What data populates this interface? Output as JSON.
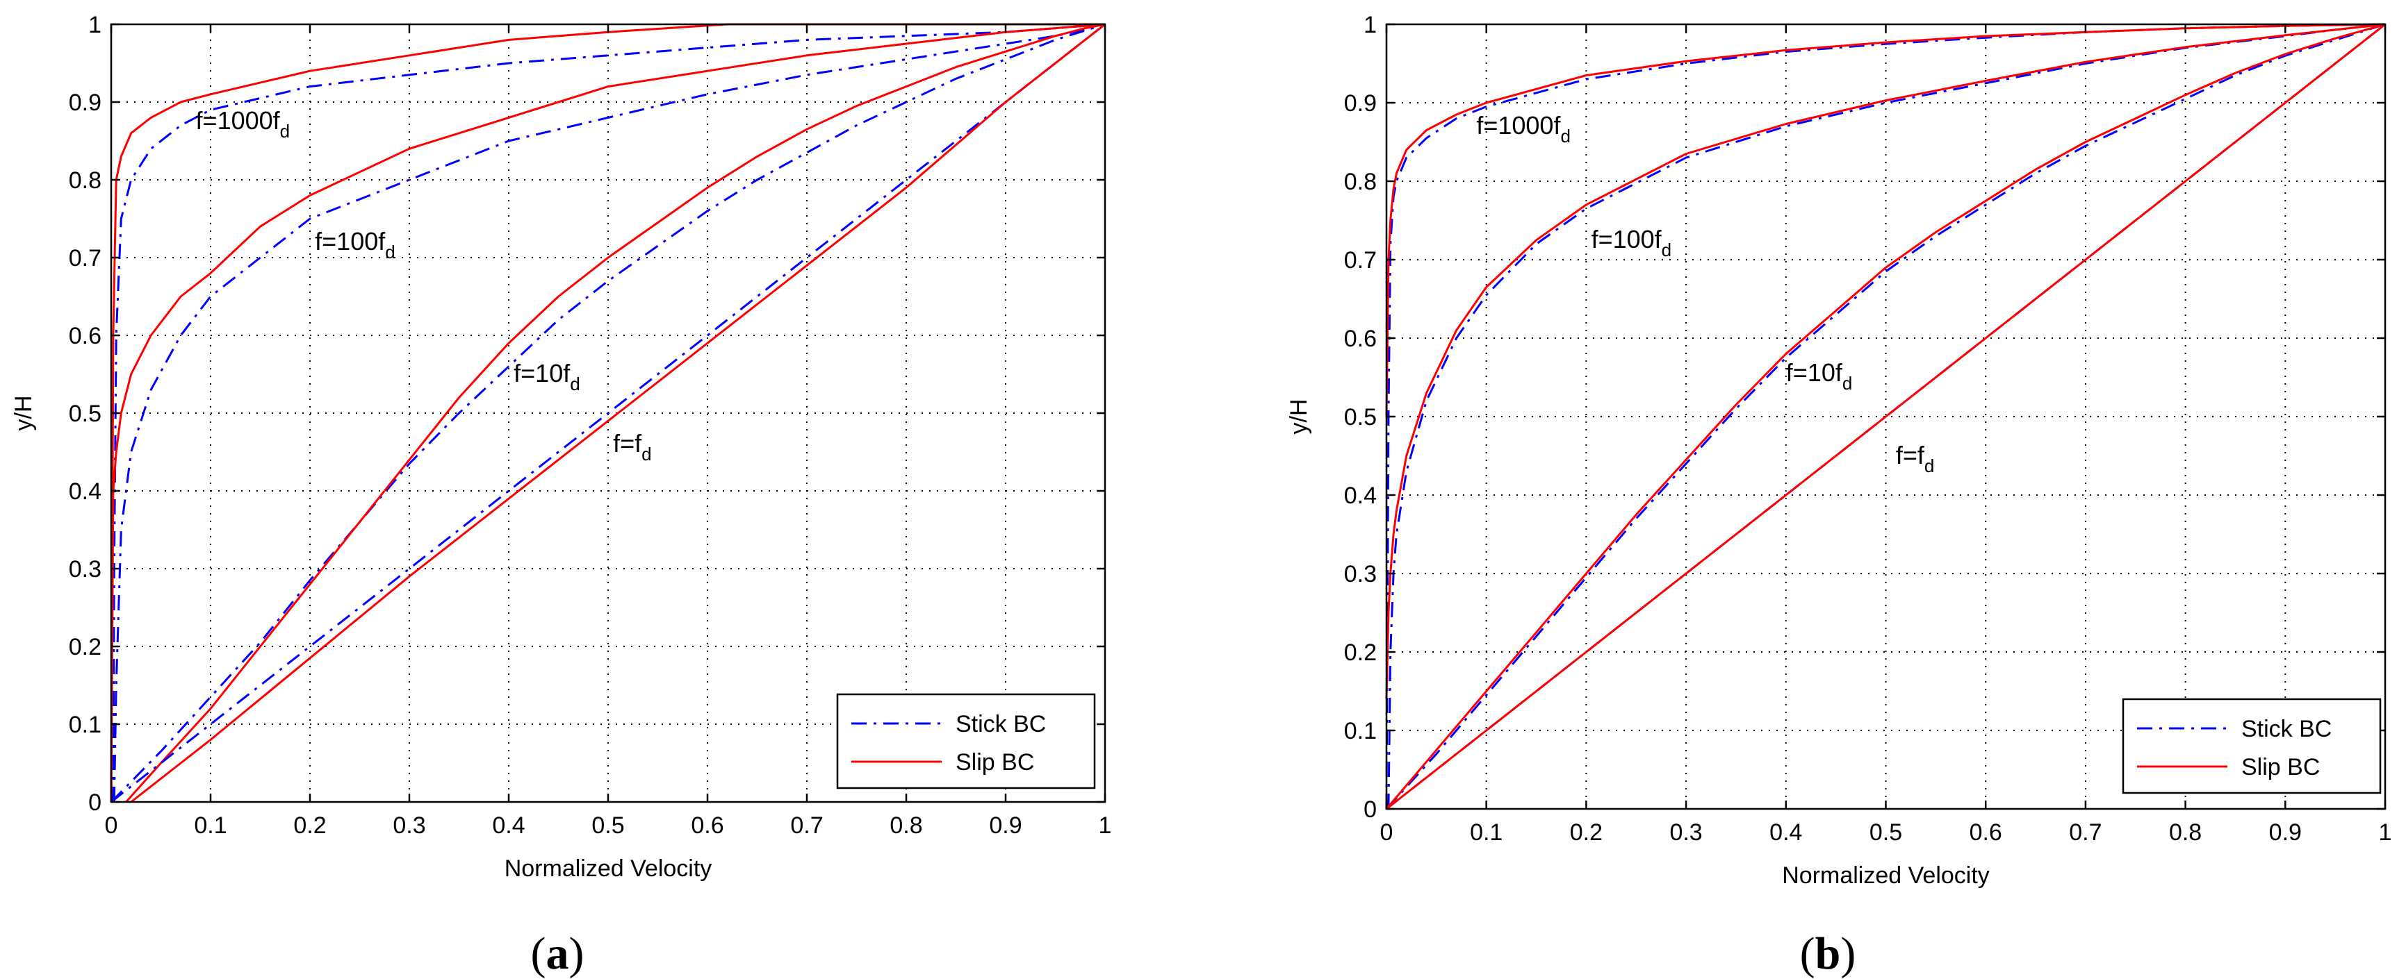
{
  "colors": {
    "stick": "#0000ff",
    "slip": "#ff0000",
    "axis": "#000000",
    "background": "#ffffff"
  },
  "chart_data": [
    {
      "id": "a",
      "type": "line",
      "caption_label": "a",
      "caption_open": "(",
      "caption_close": ")",
      "xlabel": "Normalized Velocity",
      "ylabel": "y/H",
      "xlim": [
        0,
        1
      ],
      "ylim": [
        0,
        1
      ],
      "grid": true,
      "xticks": [
        "0",
        "0.1",
        "0.2",
        "0.3",
        "0.4",
        "0.5",
        "0.6",
        "0.7",
        "0.8",
        "0.9",
        "1"
      ],
      "yticks": [
        "0",
        "0.1",
        "0.2",
        "0.3",
        "0.4",
        "0.5",
        "0.6",
        "0.7",
        "0.8",
        "0.9",
        "1"
      ],
      "legend": {
        "position": "bottom-right",
        "entries": [
          "Stick BC",
          "Slip BC"
        ]
      },
      "annotations": [
        {
          "base": "f=1000f",
          "sub": "d",
          "x": 0.085,
          "y": 0.865
        },
        {
          "base": "f=100f",
          "sub": "d",
          "x": 0.205,
          "y": 0.71
        },
        {
          "base": "f=10f",
          "sub": "d",
          "x": 0.405,
          "y": 0.54
        },
        {
          "base": "f=f",
          "sub": "d",
          "x": 0.505,
          "y": 0.45
        }
      ],
      "series": [
        {
          "name": "Stick BC",
          "label": "f=1000f_d",
          "style": "dashdot",
          "x": [
            0.002,
            0.003,
            0.005,
            0.01,
            0.02,
            0.04,
            0.07,
            0.1,
            0.2,
            0.3,
            0.4,
            0.5,
            0.6,
            0.7,
            0.8,
            0.9,
            0.95,
            0.98,
            1.0
          ],
          "y": [
            0,
            0.3,
            0.6,
            0.75,
            0.8,
            0.84,
            0.87,
            0.89,
            0.92,
            0.935,
            0.95,
            0.96,
            0.97,
            0.98,
            0.985,
            0.99,
            0.995,
            0.998,
            1.0
          ]
        },
        {
          "name": "Slip BC",
          "label": "f=1000f_d",
          "style": "solid",
          "x": [
            0.0,
            0.002,
            0.005,
            0.01,
            0.02,
            0.04,
            0.07,
            0.1,
            0.2,
            0.3,
            0.4,
            0.5,
            0.62,
            0.7,
            0.85,
            0.97,
            1.0
          ],
          "y": [
            0,
            0.6,
            0.8,
            0.83,
            0.86,
            0.88,
            0.9,
            0.91,
            0.94,
            0.96,
            0.98,
            0.99,
            1.0,
            1.0,
            1.0,
            1.0,
            1.0
          ]
        },
        {
          "name": "Stick BC",
          "label": "f=100f_d",
          "style": "dashdot",
          "x": [
            0.003,
            0.005,
            0.01,
            0.02,
            0.04,
            0.07,
            0.1,
            0.15,
            0.2,
            0.3,
            0.4,
            0.5,
            0.6,
            0.7,
            0.8,
            0.9,
            0.95,
            0.98,
            1.0
          ],
          "y": [
            0,
            0.15,
            0.35,
            0.45,
            0.53,
            0.6,
            0.65,
            0.7,
            0.75,
            0.8,
            0.85,
            0.88,
            0.91,
            0.935,
            0.955,
            0.975,
            0.985,
            0.993,
            1.0
          ]
        },
        {
          "name": "Slip BC",
          "label": "f=100f_d",
          "style": "solid",
          "x": [
            0.0,
            0.002,
            0.005,
            0.01,
            0.02,
            0.04,
            0.07,
            0.1,
            0.15,
            0.2,
            0.3,
            0.4,
            0.5,
            0.6,
            0.7,
            0.8,
            0.9,
            0.95,
            1.0
          ],
          "y": [
            0,
            0.4,
            0.45,
            0.5,
            0.55,
            0.6,
            0.65,
            0.68,
            0.74,
            0.78,
            0.84,
            0.88,
            0.92,
            0.94,
            0.96,
            0.975,
            0.99,
            0.995,
            1.0
          ]
        },
        {
          "name": "Stick BC",
          "label": "f=10f_d",
          "style": "dashdot",
          "x": [
            0.0,
            0.05,
            0.1,
            0.15,
            0.2,
            0.25,
            0.3,
            0.35,
            0.4,
            0.45,
            0.5,
            0.55,
            0.6,
            0.65,
            0.7,
            0.75,
            0.8,
            0.85,
            0.9,
            0.95,
            1.0
          ],
          "y": [
            0,
            0.065,
            0.135,
            0.205,
            0.285,
            0.36,
            0.435,
            0.5,
            0.56,
            0.62,
            0.67,
            0.715,
            0.76,
            0.8,
            0.835,
            0.87,
            0.9,
            0.93,
            0.955,
            0.98,
            1.0
          ]
        },
        {
          "name": "Slip BC",
          "label": "f=10f_d",
          "style": "solid",
          "x": [
            0.015,
            0.05,
            0.1,
            0.15,
            0.2,
            0.25,
            0.3,
            0.35,
            0.4,
            0.45,
            0.5,
            0.55,
            0.6,
            0.65,
            0.7,
            0.75,
            0.8,
            0.85,
            0.9,
            0.95,
            0.98,
            1.0
          ],
          "y": [
            0,
            0.05,
            0.12,
            0.2,
            0.28,
            0.36,
            0.44,
            0.52,
            0.59,
            0.65,
            0.7,
            0.745,
            0.79,
            0.83,
            0.865,
            0.895,
            0.92,
            0.945,
            0.965,
            0.985,
            0.995,
            1.0
          ]
        },
        {
          "name": "Stick BC",
          "label": "f=f_d",
          "style": "dashdot",
          "x": [
            0.0,
            0.1,
            0.2,
            0.3,
            0.4,
            0.5,
            0.6,
            0.7,
            0.8,
            0.9,
            0.95,
            1.0
          ],
          "y": [
            0,
            0.1,
            0.2,
            0.3,
            0.4,
            0.5,
            0.6,
            0.7,
            0.8,
            0.9,
            0.95,
            1.0
          ]
        },
        {
          "name": "Slip BC",
          "label": "f=f_d",
          "style": "solid",
          "x": [
            0.02,
            0.1,
            0.2,
            0.3,
            0.4,
            0.5,
            0.6,
            0.7,
            0.8,
            0.9,
            0.97,
            1.0
          ],
          "y": [
            0,
            0.08,
            0.185,
            0.29,
            0.39,
            0.49,
            0.59,
            0.69,
            0.79,
            0.9,
            0.97,
            1.0
          ]
        }
      ]
    },
    {
      "id": "b",
      "type": "line",
      "caption_label": "b",
      "caption_open": "(",
      "caption_close": ")",
      "xlabel": "Normalized Velocity",
      "ylabel": "y/H",
      "xlim": [
        0,
        1
      ],
      "ylim": [
        0,
        1
      ],
      "grid": true,
      "xticks": [
        "0",
        "0.1",
        "0.2",
        "0.3",
        "0.4",
        "0.5",
        "0.6",
        "0.7",
        "0.8",
        "0.9",
        "1"
      ],
      "yticks": [
        "0",
        "0.1",
        "0.2",
        "0.3",
        "0.4",
        "0.5",
        "0.6",
        "0.7",
        "0.8",
        "0.9",
        "1"
      ],
      "legend": {
        "position": "bottom-right",
        "entries": [
          "Stick BC",
          "Slip BC"
        ]
      },
      "annotations": [
        {
          "base": "f=1000f",
          "sub": "d",
          "x": 0.09,
          "y": 0.86
        },
        {
          "base": "f=100f",
          "sub": "d",
          "x": 0.205,
          "y": 0.715
        },
        {
          "base": "f=10f",
          "sub": "d",
          "x": 0.4,
          "y": 0.545
        },
        {
          "base": "f=f",
          "sub": "d",
          "x": 0.51,
          "y": 0.44
        }
      ],
      "series": [
        {
          "name": "Stick BC",
          "label": "f=1000f_d",
          "style": "dashdot",
          "x": [
            0.0,
            0.002,
            0.004,
            0.007,
            0.01,
            0.02,
            0.04,
            0.07,
            0.1,
            0.2,
            0.3,
            0.4,
            0.5,
            0.6,
            0.7,
            0.8,
            0.9,
            0.95,
            1.0
          ],
          "y": [
            0,
            0.5,
            0.72,
            0.78,
            0.8,
            0.83,
            0.855,
            0.88,
            0.895,
            0.93,
            0.95,
            0.965,
            0.975,
            0.983,
            0.99,
            0.995,
            0.998,
            0.999,
            1.0
          ]
        },
        {
          "name": "Slip BC",
          "label": "f=1000f_d",
          "style": "solid",
          "x": [
            0.0,
            0.002,
            0.004,
            0.007,
            0.01,
            0.02,
            0.04,
            0.07,
            0.1,
            0.2,
            0.3,
            0.4,
            0.5,
            0.6,
            0.7,
            0.8,
            0.9,
            0.95,
            1.0
          ],
          "y": [
            0.5,
            0.7,
            0.75,
            0.79,
            0.81,
            0.84,
            0.865,
            0.885,
            0.9,
            0.935,
            0.953,
            0.967,
            0.977,
            0.985,
            0.99,
            0.995,
            0.998,
            0.999,
            1.0
          ]
        },
        {
          "name": "Stick BC",
          "label": "f=100f_d",
          "style": "dashdot",
          "x": [
            0.002,
            0.004,
            0.007,
            0.01,
            0.02,
            0.04,
            0.07,
            0.1,
            0.15,
            0.2,
            0.3,
            0.4,
            0.5,
            0.6,
            0.7,
            0.8,
            0.9,
            0.95,
            1.0
          ],
          "y": [
            0,
            0.2,
            0.3,
            0.35,
            0.43,
            0.52,
            0.6,
            0.655,
            0.72,
            0.765,
            0.83,
            0.87,
            0.9,
            0.925,
            0.95,
            0.97,
            0.985,
            0.993,
            1.0
          ]
        },
        {
          "name": "Slip BC",
          "label": "f=100f_d",
          "style": "solid",
          "x": [
            0.0,
            0.002,
            0.004,
            0.007,
            0.01,
            0.02,
            0.04,
            0.07,
            0.1,
            0.15,
            0.2,
            0.3,
            0.4,
            0.5,
            0.6,
            0.7,
            0.8,
            0.9,
            0.95,
            1.0
          ],
          "y": [
            0.14,
            0.25,
            0.3,
            0.35,
            0.38,
            0.45,
            0.53,
            0.61,
            0.665,
            0.725,
            0.77,
            0.835,
            0.873,
            0.903,
            0.928,
            0.952,
            0.971,
            0.986,
            0.993,
            1.0
          ]
        },
        {
          "name": "Stick BC",
          "label": "f=10f_d",
          "style": "dashdot",
          "x": [
            0.0,
            0.05,
            0.1,
            0.15,
            0.2,
            0.25,
            0.3,
            0.35,
            0.4,
            0.45,
            0.5,
            0.55,
            0.6,
            0.65,
            0.7,
            0.75,
            0.8,
            0.85,
            0.9,
            0.95,
            1.0
          ],
          "y": [
            0,
            0.07,
            0.145,
            0.22,
            0.295,
            0.37,
            0.44,
            0.51,
            0.575,
            0.63,
            0.685,
            0.73,
            0.77,
            0.81,
            0.845,
            0.875,
            0.905,
            0.935,
            0.96,
            0.98,
            1.0
          ]
        },
        {
          "name": "Slip BC",
          "label": "f=10f_d",
          "style": "solid",
          "x": [
            0.0,
            0.05,
            0.1,
            0.15,
            0.2,
            0.25,
            0.3,
            0.35,
            0.4,
            0.45,
            0.5,
            0.55,
            0.6,
            0.65,
            0.7,
            0.75,
            0.8,
            0.85,
            0.9,
            0.95,
            1.0
          ],
          "y": [
            0,
            0.075,
            0.15,
            0.225,
            0.3,
            0.375,
            0.445,
            0.515,
            0.58,
            0.635,
            0.69,
            0.735,
            0.775,
            0.815,
            0.85,
            0.88,
            0.91,
            0.938,
            0.962,
            0.982,
            1.0
          ]
        },
        {
          "name": "Stick BC",
          "label": "f=f_d",
          "style": "dashdot",
          "x": [
            0.0,
            0.1,
            0.2,
            0.3,
            0.4,
            0.5,
            0.6,
            0.7,
            0.8,
            0.9,
            1.0
          ],
          "y": [
            0,
            0.1,
            0.2,
            0.3,
            0.4,
            0.5,
            0.6,
            0.7,
            0.8,
            0.9,
            1.0
          ]
        },
        {
          "name": "Slip BC",
          "label": "f=f_d",
          "style": "solid",
          "x": [
            0.0,
            0.1,
            0.2,
            0.3,
            0.4,
            0.5,
            0.6,
            0.7,
            0.8,
            0.9,
            1.0
          ],
          "y": [
            0,
            0.1,
            0.2,
            0.3,
            0.4,
            0.5,
            0.6,
            0.7,
            0.8,
            0.9,
            1.0
          ]
        }
      ]
    }
  ]
}
